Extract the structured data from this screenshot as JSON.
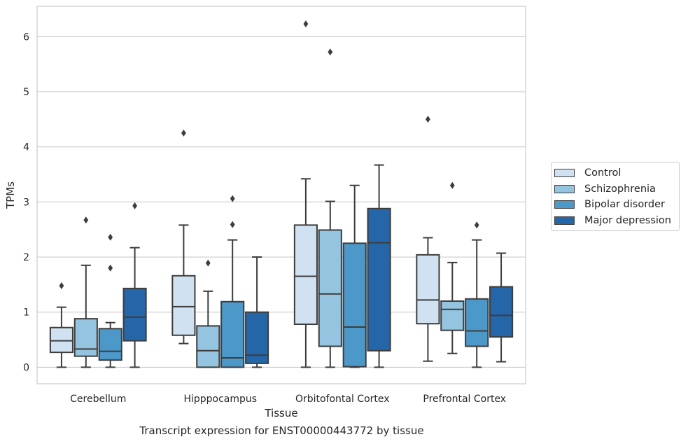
{
  "chart_data": {
    "type": "box",
    "xlabel": "Tissue",
    "ylabel": "TPMs",
    "caption": "Transcript expression for ENST00000443772 by tissue",
    "ylim": [
      -0.3,
      6.55
    ],
    "yticks": [
      "0",
      "1",
      "2",
      "3",
      "4",
      "5",
      "6"
    ],
    "grid": "horizontal",
    "legend_position": "right",
    "categories": [
      "Cerebellum",
      "Hipppocampus",
      "Orbitofontal Cortex",
      "Prefrontal Cortex"
    ],
    "series": [
      {
        "name": "Control",
        "color": "#d0e2f1",
        "boxes": [
          {
            "whisker_low": 0.0,
            "q1": 0.27,
            "median": 0.48,
            "q3": 0.72,
            "whisker_high": 1.09,
            "outliers": [
              1.48
            ]
          },
          {
            "whisker_low": 0.43,
            "q1": 0.58,
            "median": 1.1,
            "q3": 1.66,
            "whisker_high": 2.58,
            "outliers": [
              4.25
            ]
          },
          {
            "whisker_low": 0.0,
            "q1": 0.78,
            "median": 1.65,
            "q3": 2.58,
            "whisker_high": 3.42,
            "outliers": [
              6.23
            ]
          },
          {
            "whisker_low": 0.11,
            "q1": 0.79,
            "median": 1.22,
            "q3": 2.04,
            "whisker_high": 2.35,
            "outliers": [
              4.5
            ]
          }
        ]
      },
      {
        "name": "Schizophrenia",
        "color": "#94c4df",
        "boxes": [
          {
            "whisker_low": 0.0,
            "q1": 0.2,
            "median": 0.33,
            "q3": 0.88,
            "whisker_high": 1.85,
            "outliers": [
              2.67
            ]
          },
          {
            "whisker_low": 0.0,
            "q1": 0.0,
            "median": 0.3,
            "q3": 0.75,
            "whisker_high": 1.38,
            "outliers": [
              1.89
            ]
          },
          {
            "whisker_low": 0.0,
            "q1": 0.38,
            "median": 1.33,
            "q3": 2.49,
            "whisker_high": 3.01,
            "outliers": [
              5.72
            ]
          },
          {
            "whisker_low": 0.25,
            "q1": 0.67,
            "median": 1.05,
            "q3": 1.2,
            "whisker_high": 1.9,
            "outliers": [
              3.3
            ]
          }
        ]
      },
      {
        "name": "Bipolar disorder",
        "color": "#4b98c9",
        "boxes": [
          {
            "whisker_low": 0.0,
            "q1": 0.13,
            "median": 0.29,
            "q3": 0.7,
            "whisker_high": 0.81,
            "outliers": [
              1.8,
              2.36
            ]
          },
          {
            "whisker_low": 0.0,
            "q1": 0.0,
            "median": 0.17,
            "q3": 1.19,
            "whisker_high": 2.31,
            "outliers": [
              2.59,
              3.06
            ]
          },
          {
            "whisker_low": 0.0,
            "q1": 0.01,
            "median": 0.73,
            "q3": 2.25,
            "whisker_high": 3.3,
            "outliers": []
          },
          {
            "whisker_low": 0.0,
            "q1": 0.38,
            "median": 0.66,
            "q3": 1.24,
            "whisker_high": 2.31,
            "outliers": [
              2.58
            ]
          }
        ]
      },
      {
        "name": "Major depression",
        "color": "#2566a8",
        "boxes": [
          {
            "whisker_low": 0.0,
            "q1": 0.48,
            "median": 0.91,
            "q3": 1.43,
            "whisker_high": 2.17,
            "outliers": [
              2.93
            ]
          },
          {
            "whisker_low": 0.0,
            "q1": 0.07,
            "median": 0.22,
            "q3": 1.0,
            "whisker_high": 2.0,
            "outliers": []
          },
          {
            "whisker_low": 0.0,
            "q1": 0.3,
            "median": 2.26,
            "q3": 2.88,
            "whisker_high": 3.67,
            "outliers": []
          },
          {
            "whisker_low": 0.1,
            "q1": 0.55,
            "median": 0.94,
            "q3": 1.46,
            "whisker_high": 2.07,
            "outliers": []
          }
        ]
      }
    ]
  }
}
